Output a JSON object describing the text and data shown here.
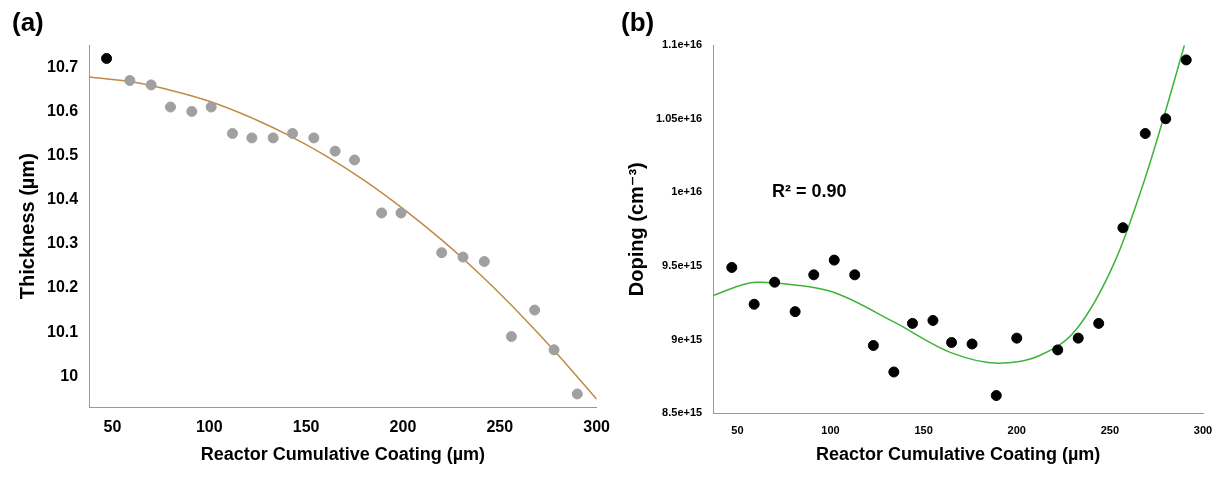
{
  "chart_data": [
    {
      "type": "scatter",
      "title": "(a)",
      "xlabel": "Reactor Cumulative Coating (µm)",
      "ylabel": "Thickness (µm)",
      "xlim": [
        38,
        300
      ],
      "xticks": [
        50,
        100,
        150,
        200,
        250,
        300
      ],
      "ylim": [
        9.93,
        10.75
      ],
      "yticks": [
        {
          "value": 10,
          "label": "10"
        },
        10.1,
        10.2,
        10.3,
        10.4,
        10.5,
        10.6,
        10.7
      ],
      "grid": false,
      "legend": false,
      "marker": "circle",
      "series": [
        {
          "colors": [
            "#000000",
            "#a0a0a0",
            "#a0a0a0",
            "#a0a0a0",
            "#a0a0a0",
            "#a0a0a0",
            "#a0a0a0",
            "#a0a0a0",
            "#a0a0a0",
            "#a0a0a0",
            "#a0a0a0",
            "#a0a0a0",
            "#a0a0a0",
            "#a0a0a0",
            "#a0a0a0",
            "#a0a0a0",
            "#a0a0a0",
            "#a0a0a0",
            "#a0a0a0",
            "#a0a0a0",
            "#a0a0a0",
            "#a0a0a0"
          ],
          "x": [
            47,
            59,
            70,
            80,
            91,
            101,
            112,
            122,
            133,
            143,
            154,
            165,
            175,
            189,
            199,
            220,
            231,
            242,
            256,
            268,
            278,
            290
          ],
          "values": [
            10.72,
            10.67,
            10.66,
            10.61,
            10.6,
            10.61,
            10.55,
            10.54,
            10.54,
            10.55,
            10.54,
            10.51,
            10.49,
            10.37,
            10.37,
            10.28,
            10.27,
            10.26,
            10.09,
            10.15,
            10.06,
            9.96
          ]
        },
        {
          "type": "line",
          "color": "#c08a45",
          "marker": "none",
          "x": [
            38,
            60,
            80,
            100,
            120,
            140,
            160,
            180,
            200,
            220,
            240,
            260,
            280,
            300
          ],
          "values": [
            10.678,
            10.667,
            10.648,
            10.623,
            10.589,
            10.548,
            10.5,
            10.444,
            10.38,
            10.309,
            10.23,
            10.143,
            10.049,
            9.948
          ]
        }
      ]
    },
    {
      "type": "scatter",
      "title": "(b)",
      "xlabel": "Reactor Cumulative Coating (µm)",
      "ylabel": "Doping (cm⁻³)",
      "xlim": [
        37,
        300
      ],
      "xticks": [
        50,
        100,
        150,
        200,
        250,
        300
      ],
      "ylim": [
        8500000000000000.0,
        1.1e+16
      ],
      "yticks": [
        {
          "value": 8500000000000000.0,
          "label": "8.5e+15"
        },
        {
          "value": 9000000000000000.0,
          "label": "9e+15"
        },
        {
          "value": 9500000000000000.0,
          "label": "9.5e+15"
        },
        {
          "value": 1e+16,
          "label": "1e+16"
        },
        {
          "value": 1.05e+16,
          "label": "1.05e+16"
        },
        {
          "value": 1.1e+16,
          "label": "1.1e+16"
        }
      ],
      "grid": false,
      "legend": false,
      "marker": "circle",
      "annotations": [
        "R² = 0.90"
      ],
      "series": [
        {
          "color": "#000000",
          "x": [
            47,
            59,
            70,
            81,
            91,
            102,
            113,
            123,
            134,
            144,
            155,
            165,
            176,
            189,
            200,
            222,
            233,
            244,
            257,
            269,
            280,
            291
          ],
          "values": [
            9490000000000000.0,
            9240000000000000.0,
            9390000000000000.0,
            9190000000000000.0,
            9440000000000000.0,
            9540000000000000.0,
            9440000000000000.0,
            8960000000000000.0,
            8780000000000000.0,
            9110000000000000.0,
            9130000000000000.0,
            8980000000000000.0,
            8970000000000000.0,
            8620000000000000.0,
            9010000000000000.0,
            8930000000000000.0,
            9010000000000000.0,
            9110000000000000.0,
            9760000000000000.0,
            1.04e+16,
            1.05e+16,
            1.09e+16
          ]
        },
        {
          "type": "line",
          "color": "#3cb43c",
          "marker": "none",
          "x": [
            37,
            60,
            82,
            102,
            134,
            165,
            190,
            212,
            232,
            253,
            269,
            281,
            290
          ],
          "values": [
            9300000000000000.0,
            9390000000000000.0,
            9370000000000000.0,
            9320000000000000.0,
            9120000000000000.0,
            8910000000000000.0,
            8840000000000000.0,
            8890000000000000.0,
            9070000000000000.0,
            9540000000000000.0,
            1.01e+16,
            1.06e+16,
            1.1e+16
          ]
        }
      ]
    }
  ]
}
